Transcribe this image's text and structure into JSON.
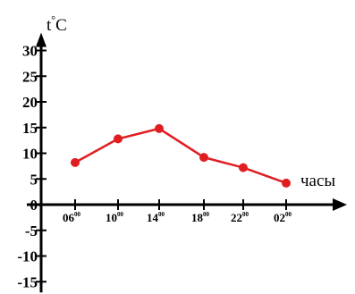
{
  "chart_data": {
    "type": "line",
    "ylabel": "t°C",
    "xlabel": "часы",
    "ylim": [
      -15,
      30
    ],
    "yticks": [
      "30",
      "25",
      "20",
      "15",
      "10",
      "5",
      "0",
      "-5",
      "-10",
      "-15"
    ],
    "ytick_values": [
      30,
      25,
      20,
      15,
      10,
      5,
      0,
      -5,
      -10,
      -15
    ],
    "categories": [
      "06",
      "10",
      "14",
      "18",
      "22",
      "02"
    ],
    "category_superscript": "00",
    "series": [
      {
        "values": [
          8.2,
          12.8,
          14.8,
          9.2,
          7.2,
          4.2
        ]
      }
    ],
    "colors": {
      "series": "#e01e22",
      "axis": "#000000"
    },
    "grid": false
  }
}
